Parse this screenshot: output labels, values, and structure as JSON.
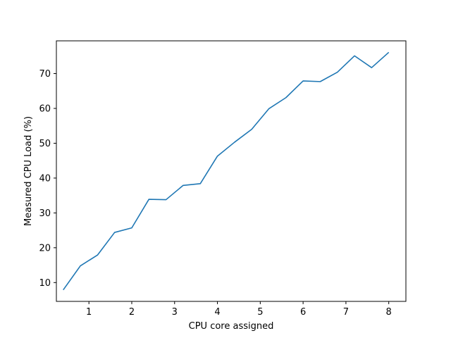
{
  "chart_data": {
    "type": "line",
    "title": "",
    "xlabel": "CPU core assigned",
    "ylabel": "Measured CPU Load (%)",
    "xlim": [
      0.24,
      8.4
    ],
    "ylim": [
      4.6,
      79.4
    ],
    "xticks": [
      1,
      2,
      3,
      4,
      5,
      6,
      7,
      8
    ],
    "yticks": [
      10,
      20,
      30,
      40,
      50,
      60,
      70
    ],
    "grid": false,
    "legend": "none",
    "series": [
      {
        "color": "#1f77b4",
        "x": [
          0.4,
          0.8,
          1.2,
          1.6,
          2.0,
          2.4,
          2.8,
          3.2,
          3.6,
          4.0,
          4.4,
          4.8,
          5.2,
          5.6,
          6.0,
          6.4,
          6.8,
          7.2,
          7.6,
          8.0
        ],
        "y": [
          7.9,
          14.8,
          17.9,
          24.4,
          25.7,
          33.9,
          33.8,
          37.9,
          38.4,
          46.3,
          50.3,
          54.0,
          59.9,
          63.1,
          67.9,
          67.7,
          70.4,
          75.1,
          71.7,
          76.1
        ]
      }
    ]
  }
}
